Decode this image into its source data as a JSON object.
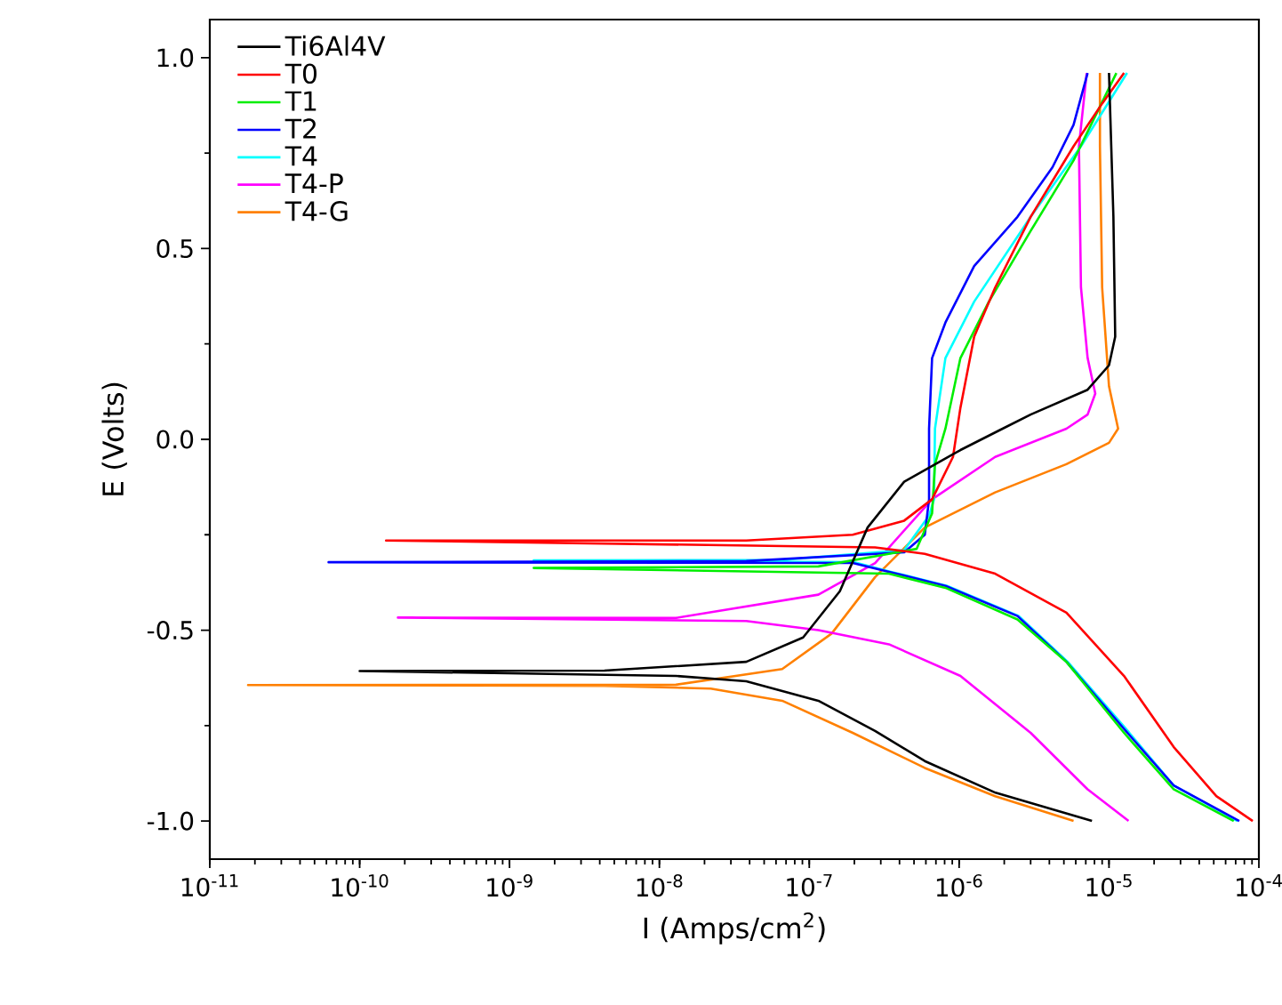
{
  "chart_data": {
    "type": "line",
    "xlabel": "I (Amps/cm$^{2}$)",
    "ylabel": "E (Volts)",
    "log": "x",
    "grid": false,
    "legend": "top left",
    "xlim": [
      1e-11,
      0.0001
    ],
    "ylim": [
      -1.1,
      1.1
    ],
    "xticks": [
      {
        "value": 1e-11,
        "label": "10$^{-11}$"
      },
      {
        "value": 1e-10,
        "label": "10$^{-10}$"
      },
      {
        "value": 1e-09,
        "label": "10$^{-9}$"
      },
      {
        "value": 1e-08,
        "label": "10$^{-8}$"
      },
      {
        "value": 1e-07,
        "label": "10$^{-7}$"
      },
      {
        "value": 1e-06,
        "label": "10$^{-6}$"
      },
      {
        "value": 1e-05,
        "label": "10$^{-5}$"
      },
      {
        "value": 0.0001,
        "label": "10$^{-4}$"
      }
    ],
    "yticks": [
      {
        "value": -1.0,
        "label": "-1.0"
      },
      {
        "value": -0.5,
        "label": "-0.5"
      },
      {
        "value": 0.0,
        "label": "0.0"
      },
      {
        "value": 0.5,
        "label": "0.5"
      },
      {
        "value": 1.0,
        "label": "1.0"
      }
    ],
    "series": [
      {
        "name": "Ti6Al4V",
        "color": "#000000",
        "x": [
          7.7e-06,
          1.75e-06,
          5.9e-07,
          2.75e-07,
          1.15e-07,
          3.8e-08,
          1.29e-08,
          1e-10,
          4.3e-09,
          3.8e-08,
          9.1e-08,
          1.6e-07,
          2.45e-07,
          4.3e-07,
          1.02e-06,
          1.95e-06,
          3e-06,
          7.2e-06,
          1e-05,
          1.1e-05,
          1.07e-05,
          1e-05
        ],
        "values": [
          -1.0,
          -0.926,
          -0.843,
          -0.764,
          -0.685,
          -0.634,
          -0.62,
          -0.607,
          -0.606,
          -0.583,
          -0.519,
          -0.398,
          -0.231,
          -0.111,
          -0.028,
          0.028,
          0.065,
          0.13,
          0.194,
          0.269,
          0.583,
          0.96
        ]
      },
      {
        "name": "T0",
        "color": "#ff0000",
        "x": [
          9.1e-05,
          5.2e-05,
          2.7e-05,
          1.26e-05,
          5.2e-06,
          1.74e-06,
          5.9e-07,
          2.75e-07,
          1.5e-10,
          3.8e-08,
          1.95e-07,
          4.3e-07,
          6.6e-07,
          9.1e-07,
          1.02e-06,
          1.26e-06,
          1.74e-06,
          3e-06,
          5.8e-06,
          9e-06,
          1.26e-05
        ],
        "values": [
          -1.0,
          -0.935,
          -0.806,
          -0.62,
          -0.454,
          -0.352,
          -0.3,
          -0.283,
          -0.265,
          -0.265,
          -0.25,
          -0.213,
          -0.157,
          -0.046,
          0.083,
          0.269,
          0.398,
          0.583,
          0.768,
          0.88,
          0.96
        ]
      },
      {
        "name": "T1",
        "color": "#00ee00",
        "x": [
          6.8e-05,
          2.7e-05,
          1.26e-05,
          5.2e-06,
          2.45e-06,
          8.1e-07,
          3.4e-07,
          1.45e-09,
          1.15e-07,
          5.2e-07,
          6.6e-07,
          6.9e-07,
          8.1e-07,
          1.02e-06,
          1.58e-06,
          3e-06,
          5.8e-06,
          1.12e-05
        ],
        "values": [
          -1.0,
          -0.917,
          -0.769,
          -0.583,
          -0.472,
          -0.389,
          -0.352,
          -0.337,
          -0.333,
          -0.287,
          -0.194,
          -0.065,
          0.028,
          0.213,
          0.361,
          0.546,
          0.731,
          0.96
        ]
      },
      {
        "name": "T2",
        "color": "#0000ff",
        "x": [
          7.4e-05,
          2.7e-05,
          1.26e-05,
          5.2e-06,
          2.45e-06,
          8.1e-07,
          3.4e-07,
          1.95e-07,
          6.2e-11,
          3.8e-08,
          4.3e-07,
          5.9e-07,
          6.3e-07,
          6.3e-07,
          6.6e-07,
          8.1e-07,
          1.26e-06,
          2.45e-06,
          4.2e-06,
          5.8e-06,
          7.2e-06
        ],
        "values": [
          -1.0,
          -0.907,
          -0.759,
          -0.583,
          -0.463,
          -0.384,
          -0.347,
          -0.324,
          -0.322,
          -0.319,
          -0.296,
          -0.25,
          -0.157,
          0.028,
          0.213,
          0.306,
          0.454,
          0.583,
          0.713,
          0.824,
          0.96
        ]
      },
      {
        "name": "T4",
        "color": "#00ffff",
        "x": [
          7.2e-05,
          2.7e-05,
          1.3e-05,
          5.3e-06,
          2.5e-06,
          8.3e-07,
          3.5e-07,
          2e-07,
          1.45e-09,
          6.5e-08,
          4.3e-07,
          6.3e-07,
          6.8e-07,
          6.9e-07,
          8.1e-07,
          1.26e-06,
          3e-06,
          6.5e-06,
          1.32e-05
        ],
        "values": [
          -1.0,
          -0.907,
          -0.759,
          -0.583,
          -0.463,
          -0.384,
          -0.347,
          -0.322,
          -0.317,
          -0.316,
          -0.29,
          -0.2,
          -0.157,
          0.028,
          0.213,
          0.361,
          0.583,
          0.768,
          0.96
        ]
      },
      {
        "name": "T4-P",
        "color": "#ff00ff",
        "x": [
          1.35e-05,
          7.2e-06,
          3e-06,
          1.02e-06,
          3.4e-07,
          1.15e-07,
          3.8e-08,
          1.8e-10,
          1.29e-08,
          1.15e-07,
          2.75e-07,
          6.6e-07,
          1.74e-06,
          5.2e-06,
          7.2e-06,
          8.1e-06,
          7.2e-06,
          6.5e-06,
          6.3e-06,
          7.1e-06
        ],
        "values": [
          -1.0,
          -0.917,
          -0.769,
          -0.62,
          -0.537,
          -0.5,
          -0.476,
          -0.467,
          -0.468,
          -0.407,
          -0.324,
          -0.157,
          -0.046,
          0.028,
          0.065,
          0.12,
          0.213,
          0.398,
          0.768,
          0.96
        ]
      },
      {
        "name": "T4-G",
        "color": "#ff8000",
        "x": [
          5.8e-06,
          1.74e-06,
          5.9e-07,
          1.95e-07,
          6.6e-08,
          2.2e-08,
          4.3e-09,
          1.8e-11,
          1.29e-08,
          6.6e-08,
          1.41e-07,
          2.75e-07,
          5.9e-07,
          1.74e-06,
          5.2e-06,
          1e-05,
          1.15e-05,
          1e-05,
          9e-06,
          8.7e-06,
          8.7e-06
        ],
        "values": [
          -1.0,
          -0.935,
          -0.861,
          -0.769,
          -0.685,
          -0.653,
          -0.646,
          -0.644,
          -0.643,
          -0.602,
          -0.509,
          -0.361,
          -0.231,
          -0.139,
          -0.065,
          -0.009,
          0.028,
          0.139,
          0.398,
          0.768,
          0.96
        ]
      }
    ]
  }
}
